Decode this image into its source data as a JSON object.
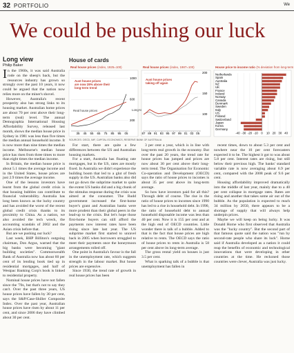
{
  "header": {
    "page_number": "32",
    "section": "PORTFOLIO",
    "corner": "We"
  },
  "headline": "We could be pushing our luck",
  "byline": {
    "label": "Long view",
    "author": "Philip Baker"
  },
  "feature": {
    "title": "House of cards",
    "source": "SOURCES: OECD, IMF, CAPITAL ECONOMICS, RESERVE BANK OF AUSTRALIA"
  },
  "columns": [
    [
      "In the 1960s, it was said Australia rode on the sheep's back, but the resources industry has grown so strongly over the past 10 years, it now could be argued that the nation now relies more on the miner's shovel.",
      "However, Australia's recent prosperity also has strong links to its housing market. Australian home prices are about 70 per cent above their long-term (real) level. The annual Demographia International Housing Affordability Survey, released last month, shows the median house price in Sydney in 1981 was less than five times the median annual household income. It is now more than nine times the median income. Melbourne's median house price has risen from three times to more than eight times the median income.",
      "In Britain, the median house price is about 5.1 times the average income and in the United States, house prices are just 2.9 times the average income.",
      "One of the lessons investors have learnt from the global credit crisis is that housing bubbles can contribute to financial vulnerability. Australia has long been known as the lucky country and has avoided the worst of the recent global credit crisis thanks to its proximity to China. As a nation, we also avoided the tech wreck, the accounting scandals of 2002 and the Asian crisis before that.",
      "But are we pushing our luck?",
      "Last week, BHP Billiton's outgoing chairman, Don Argus, warned that the big banks were becoming \"giant building societies\". Commonwealth Bank of Australia now has about 60 per cent of its lending book tied up in residential mortgages, and half of Westpac Banking Corp's book is linked to residential property.",
      "Nominal house prices have not fallen since the '70s, but that's not to say they can't. Over the past three years, US house prices have fallen by 30 per cent, says the S&P/Case-Shiller Composite Index. Over the past year, Australian house prices have risen by about 11 per cent, and since 2006 they have climbed about 30 per cent."
    ],
    [
      "For start, there are quite a few differences between the US and Australian housing markets.",
      "For a start, Australia has floating rate mortgages, but in the US, rates are mostly fixed. In Australia we didn't experience the building boom that led to a glut of fresh supply in the US. Australian banks also did not go down the subprime market to quite the extent US banks did and a big chunk of the stimulus response during the crisis was aimed at the consumer. The Rudd government increased the first-home buyer's grant and Australian banks were more prudent than their global peers in the lead-up to the crisis. But let's hope those first-home buyers can still afford the payments now interest rates have been rising since late last year. The US subprime market first started to unravel back in 2005 when borrowers struggled to meet their payments once the honeymoon arrangements rolled off.",
      "One point in Australia's favour is the fall in the unemployment rate, which suggests strength in the labour market. But house prices are expensive.",
      "Since 1930, the trend rate of growth in real house prices has been"
    ],
    [
      "3 per cent a year, which is in line with long-term real growth in the economy. But over the past 20 years, the trend rate for house prices has jumped and prices are now about 30 per cent above their long-term trend. The Organisation for Economic Co-operation and Development (OECD) says the ratio of house prices to incomes is about 35 per cent above its long-term average.",
      "So how have investors paid for all this? Through debt of course. The rise in the ratio of house prices to incomes since 1990 has led to a rise in household debt. In 1990, the ratio of household debt to annual household disposable income was less than 40 per cent. Now it is 155 per cent and at the high end of OECD countries. Little wonder there is talk of a bubble. Added to that is the fact that house prices are high relative to rents. The OECD says the ratio of house prices to rents in Australia is 58 per cent above its long-term average.",
      "The gross rental yield on houses is just 3.5 per cent.",
      "What is sparking talk of a bubble is that unemployment has fallen in"
    ],
    [
      "recent times, down to about 5.3 per cent and nowhere near the 10 per cent forecasters expected it to be. The highest it got to was about 5.8 per cent. Interest rates are rising, but still below their previous high. The banks' standard variable rate is now averaging about 6.9 per cent, compared with the 2008 peak of 9.6 per cent.",
      "Housing affordability improved dramatically into the middle of last year, mainly due to a 40 per cent collapse in mortgage rates. Rates are rising and another that takes some air out of the bubble. As the population is expected to reach 34 million by 2050, there appears to be a shortage of supply that will always help underpin prices.",
      "Maybe we will keep on being lucky. It was Donald Horne who first observed that Australia was the \"lucky country\". But the second part of that famous quote said the nation was \"run by second-rate people who share its luck\". Horne said if Australia developed as a nation it could reap the benefits of economic and technological innovations that were developing in other countries at the time. He reckoned those countries were clever, Australia was just lucky."
    ]
  ],
  "charts": [
    {
      "type": "line",
      "title": "Real house prices",
      "subtitle": "(index, 1925=100)",
      "xlim": [
        1925,
        2008
      ],
      "xticks": [
        {
          "value": 1935,
          "label": "35"
        },
        {
          "value": 1945,
          "label": "45"
        },
        {
          "value": 1955,
          "label": "55"
        },
        {
          "value": 1965,
          "label": "65"
        },
        {
          "value": 1975,
          "label": "75"
        },
        {
          "value": 1985,
          "label": "85"
        },
        {
          "value": 1995,
          "label": "95"
        },
        {
          "value": 2005,
          "label": "05"
        }
      ],
      "ylim": [
        0,
        1100
      ],
      "yticks": [
        200,
        600,
        1000
      ],
      "grid": true,
      "series": [
        {
          "name": "Real house prices",
          "color": "#333333",
          "x": [
            1925,
            1930,
            1935,
            1940,
            1945,
            1950,
            1955,
            1960,
            1965,
            1970,
            1975,
            1980,
            1985,
            1990,
            1995,
            2000,
            2005
          ],
          "values": [
            100,
            95,
            90,
            100,
            110,
            120,
            140,
            170,
            200,
            230,
            280,
            320,
            340,
            380,
            420,
            520,
            700
          ]
        },
        {
          "name": "Long-term trend",
          "color": "#c0392b",
          "x": [
            1925,
            2005
          ],
          "values": [
            120,
            550
          ]
        }
      ],
      "annotations": [
        {
          "lines": [
            "Aust house prices",
            "are now 28% above their",
            "long-term trend"
          ],
          "color": "#c0392b"
        }
      ]
    },
    {
      "type": "line",
      "title": "Real house prices",
      "subtitle": "(index, 1987=100)",
      "xlim": [
        1987,
        2006
      ],
      "xticks": [
        {
          "value": 1987,
          "label": "87"
        },
        {
          "value": 1989,
          "label": "89"
        },
        {
          "value": 1991,
          "label": "91"
        },
        {
          "value": 1993,
          "label": "93"
        },
        {
          "value": 1995,
          "label": "95"
        },
        {
          "value": 1997,
          "label": "97"
        },
        {
          "value": 1999,
          "label": "99"
        },
        {
          "value": 2001,
          "label": "01"
        },
        {
          "value": 2003,
          "label": "03"
        },
        {
          "value": 2005,
          "label": "05"
        }
      ],
      "ylim": [
        60,
        200
      ],
      "yticks": [
        100,
        150,
        200
      ],
      "grid": true,
      "series": [
        {
          "color": "#999999",
          "x": [
            1987,
            1988,
            1989,
            1990,
            1991,
            1992,
            1993,
            1994,
            1995,
            1996,
            1997,
            1998,
            1999,
            2000,
            2001,
            2002,
            2003,
            2004,
            2005
          ],
          "values": [
            100,
            104,
            106,
            102,
            97,
            95,
            96,
            98,
            99,
            101,
            104,
            108,
            113,
            118,
            122,
            128,
            134,
            140,
            142
          ]
        },
        {
          "color": "#c0392b",
          "x": [
            1987,
            1988,
            1989,
            1990,
            1991,
            1992,
            1993,
            1994,
            1995,
            1996,
            1997,
            1998,
            1999,
            2000,
            2001,
            2002,
            2003,
            2004,
            2005
          ],
          "values": [
            100,
            105,
            112,
            108,
            104,
            102,
            103,
            104,
            103,
            102,
            105,
            110,
            118,
            125,
            135,
            150,
            170,
            180,
            178
          ]
        }
      ],
      "annotations": [
        {
          "lines": [
            "Aust house prices",
            "taking off again"
          ],
          "color": "#c0392b"
        }
      ]
    },
    {
      "type": "hbar",
      "title": "House price to income ratio",
      "subtitle": "(% deviation from long-term average)",
      "categories": [
        "Netherlands",
        "Spain",
        "Australia",
        "NZ",
        "UK",
        "France",
        "Ireland",
        "Norway",
        "Canada",
        "Denmark",
        "Sweden",
        "Italy",
        "US",
        "Finland",
        "Switzerland",
        "Japan",
        "Korea",
        "Germany"
      ],
      "values": [
        40,
        35,
        33,
        30,
        30,
        25,
        25,
        22,
        20,
        15,
        12,
        10,
        5,
        5,
        -10,
        -35,
        -30,
        -30
      ],
      "color": "#b5473a",
      "xlim": [
        -45,
        45
      ],
      "xticks": [
        -40,
        -30,
        -20,
        -10,
        0,
        10,
        20,
        30,
        40
      ],
      "grid": true
    }
  ]
}
